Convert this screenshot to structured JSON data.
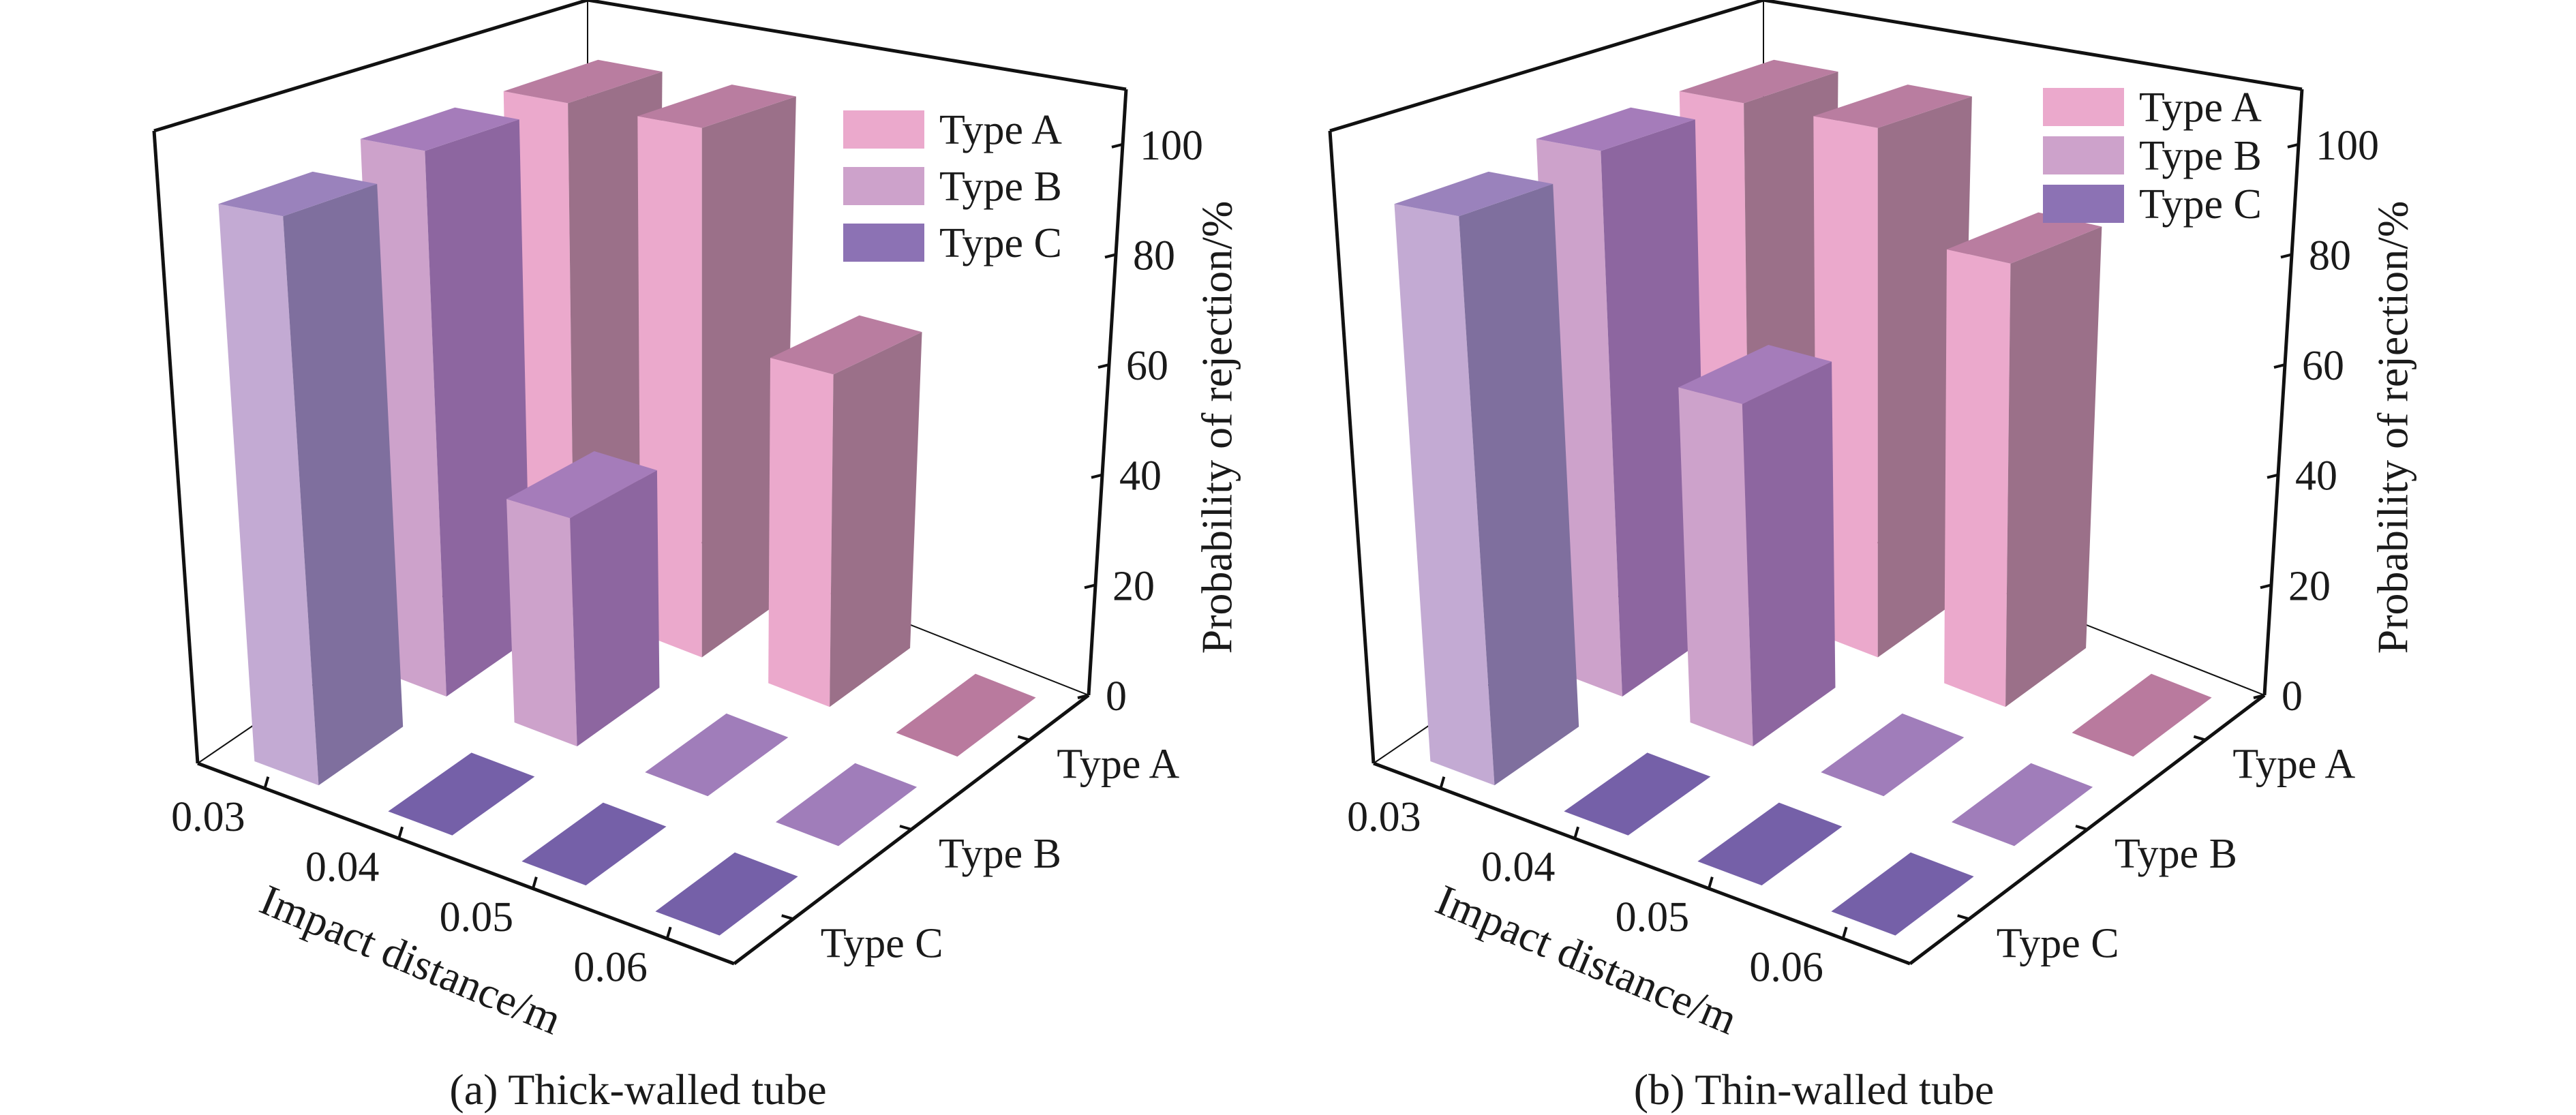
{
  "colors": {
    "type_a": {
      "front": "#EBA9CC",
      "side": "#9B7089",
      "top": "#B97DA0",
      "tile": "#B97A9E",
      "legend": "#EBA9CC"
    },
    "type_b": {
      "front": "#CDA2CB",
      "side": "#8D66A0",
      "top": "#A57CBA",
      "tile": "#A07DBA",
      "legend": "#CDA2CB"
    },
    "type_c": {
      "front": "#C3AAD3",
      "side": "#7F6F9E",
      "top": "#9A82BC",
      "tile": "#7560A8",
      "legend": "#8C72B4"
    },
    "axis": "#111111"
  },
  "chart_data": [
    {
      "type": "bar3d",
      "title": "(a) Thick-walled tube",
      "xlabel": "Impact distance/m",
      "ylabel": "",
      "zlabel": "Probability of rejection/%",
      "categories": [
        "0.03",
        "0.04",
        "0.05",
        "0.06"
      ],
      "y_categories": [
        "Type A",
        "Type B",
        "Type C"
      ],
      "zlim": [
        0,
        110
      ],
      "zticks": [
        "0",
        "20",
        "40",
        "60",
        "80",
        "100"
      ],
      "grid": false,
      "legend": {
        "placement": "top-right",
        "entries": [
          "Type A",
          "Type B",
          "Type C"
        ]
      },
      "series": [
        {
          "name": "Type A",
          "values": [
            100,
            100,
            60,
            0
          ]
        },
        {
          "name": "Type B",
          "values": [
            100,
            40,
            0,
            0
          ]
        },
        {
          "name": "Type C",
          "values": [
            97,
            0,
            0,
            0
          ]
        }
      ]
    },
    {
      "type": "bar3d",
      "title": "(b) Thin-walled tube",
      "xlabel": "Impact distance/m",
      "ylabel": "",
      "zlabel": "Probability of rejection/%",
      "categories": [
        "0.03",
        "0.04",
        "0.05",
        "0.06"
      ],
      "y_categories": [
        "Type A",
        "Type B",
        "Type C"
      ],
      "zlim": [
        0,
        110
      ],
      "zticks": [
        "0",
        "20",
        "40",
        "60",
        "80",
        "100"
      ],
      "grid": false,
      "legend": {
        "placement": "top-right",
        "entries": [
          "Type A",
          "Type B",
          "Type C"
        ]
      },
      "series": [
        {
          "name": "Type A",
          "values": [
            100,
            100,
            80,
            0
          ]
        },
        {
          "name": "Type B",
          "values": [
            100,
            60,
            0,
            0
          ]
        },
        {
          "name": "Type C",
          "values": [
            97,
            0,
            0,
            0
          ]
        }
      ]
    }
  ]
}
